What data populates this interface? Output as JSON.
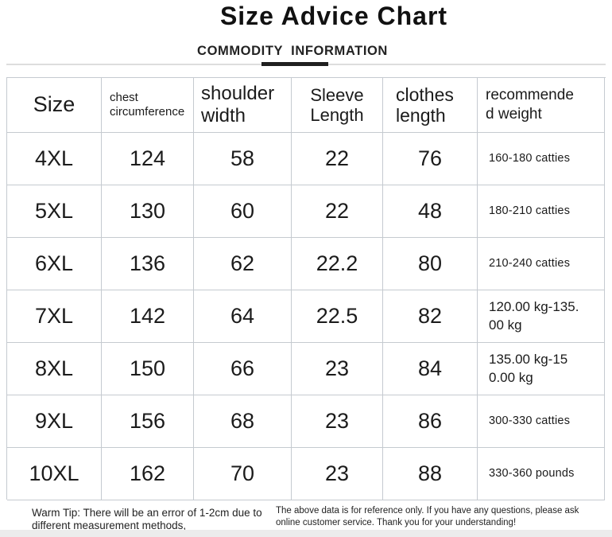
{
  "page": {
    "title": "Size Advice Chart",
    "subtitle": "COMMODITY  INFORMATION"
  },
  "table": {
    "columns": [
      {
        "key": "size",
        "label": "Size"
      },
      {
        "key": "chest",
        "label": "chest\ncircumference"
      },
      {
        "key": "shoulder",
        "label": "shoulder\nwidth"
      },
      {
        "key": "sleeve",
        "label": "Sleeve\nLength"
      },
      {
        "key": "clothes",
        "label": "clothes\nlength"
      },
      {
        "key": "weight",
        "label": "recommende\nd weight"
      }
    ],
    "rows": [
      {
        "size": "4XL",
        "chest": "124",
        "shoulder": "58",
        "sleeve": "22",
        "clothes": "76",
        "weight": "160-180 catties"
      },
      {
        "size": "5XL",
        "chest": "130",
        "shoulder": "60",
        "sleeve": "22",
        "clothes": "48",
        "weight": "180-210 catties"
      },
      {
        "size": "6XL",
        "chest": "136",
        "shoulder": "62",
        "sleeve": "22.2",
        "clothes": "80",
        "weight": "210-240 catties"
      },
      {
        "size": "7XL",
        "chest": "142",
        "shoulder": "64",
        "sleeve": "22.5",
        "clothes": "82",
        "weight": "120.00 kg-135.\n00 kg"
      },
      {
        "size": "8XL",
        "chest": "150",
        "shoulder": "66",
        "sleeve": "23",
        "clothes": "84",
        "weight": "135.00 kg-15\n0.00 kg"
      },
      {
        "size": "9XL",
        "chest": "156",
        "shoulder": "68",
        "sleeve": "23",
        "clothes": "86",
        "weight": "300-330 catties"
      },
      {
        "size": "10XL",
        "chest": "162",
        "shoulder": "70",
        "sleeve": "23",
        "clothes": "88",
        "weight": "330-360 pounds"
      }
    ]
  },
  "footer": {
    "warm_tip": "Warm Tip: There will be an error of 1-2cm due to\ndifferent measurement methods,",
    "reference_note": "The above data is for reference only. If you have any questions, please ask\nonline customer service. Thank you for your understanding!"
  },
  "colors": {
    "accent_underline": "#1f1f1f",
    "divider": "#dddddd",
    "table_border": "#c5cad0",
    "bottom_band": "#ececec"
  }
}
